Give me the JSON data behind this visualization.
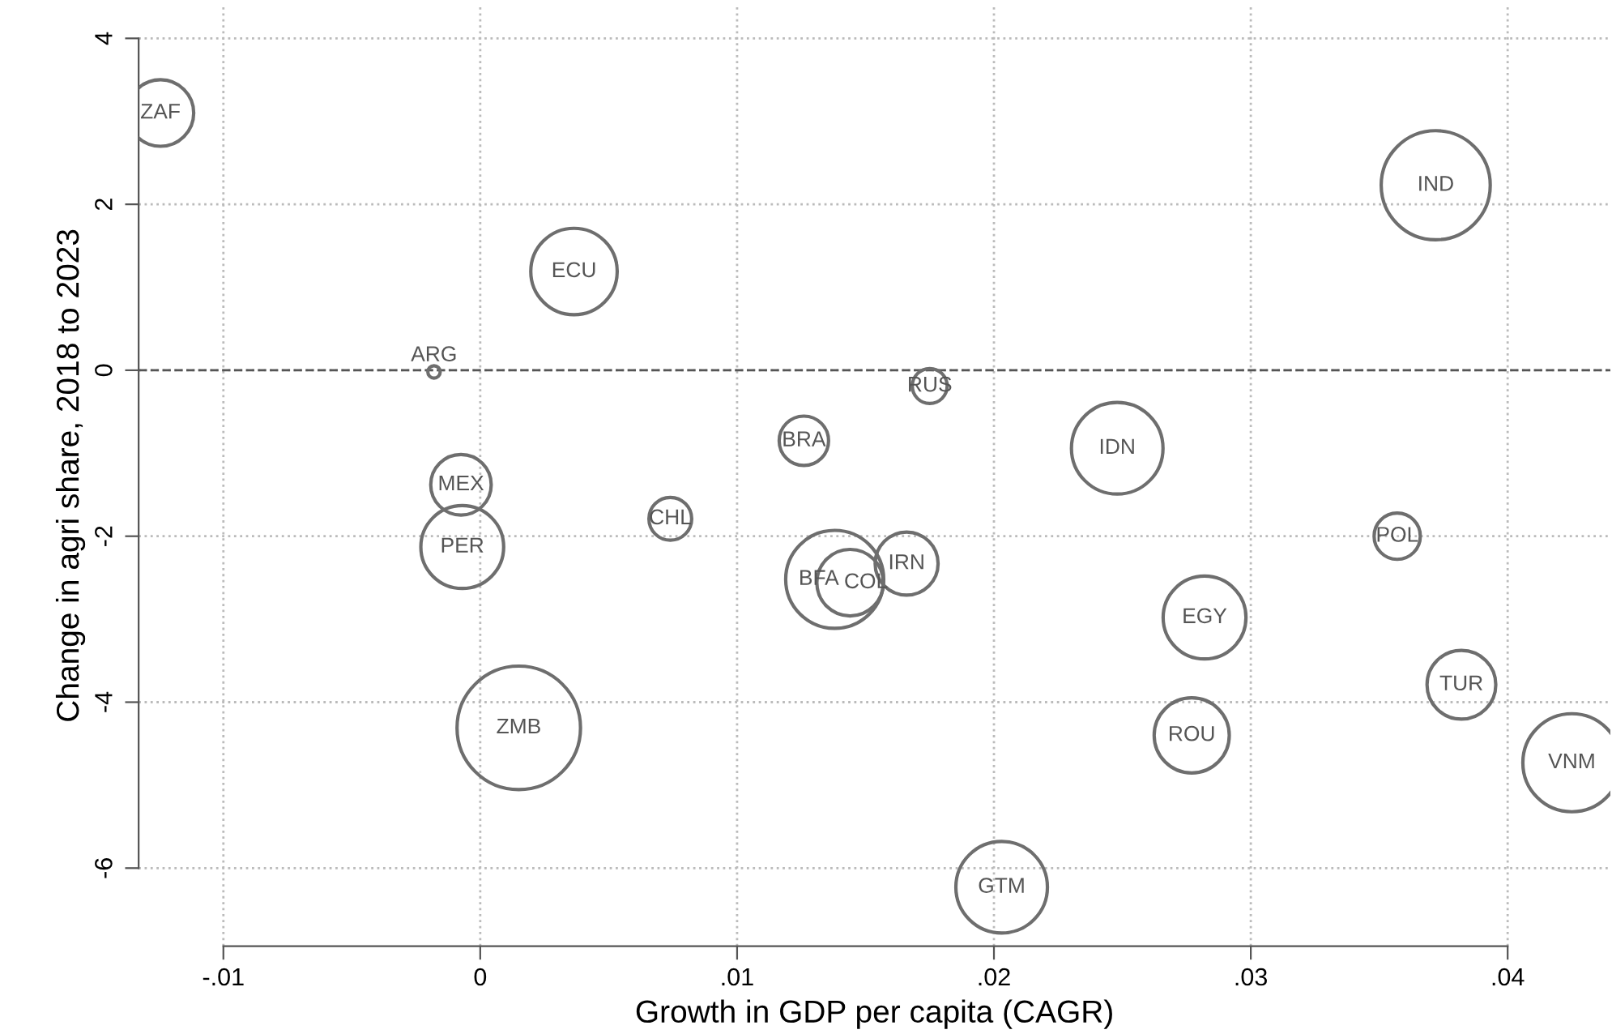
{
  "chart_data": {
    "type": "bubble",
    "xlabel": "Growth in GDP per capita (CAGR)",
    "ylabel": "Change in agri share, 2018 to 2023",
    "series": [
      {
        "color": "#6e6e6e",
        "x": [
          -0.01245,
          0.00365,
          -0.0018,
          0.0372,
          0.0175,
          0.0126,
          0.0248,
          -0.00075,
          0.0074,
          -0.0007,
          0.0138,
          0.0144,
          0.0166,
          0.0357,
          0.0282,
          0.0382,
          0.0277,
          0.0015,
          0.0425,
          0.0203
        ],
        "values": [
          3.1,
          1.19,
          -0.02,
          2.23,
          -0.19,
          -0.85,
          -0.94,
          -1.38,
          -1.79,
          -2.13,
          -2.52,
          -2.56,
          -2.33,
          -2.0,
          -2.98,
          -3.79,
          -4.4,
          -4.31,
          -4.73,
          -6.23
        ],
        "sizes": [
          0.29,
          0.49,
          0.01,
          0.78,
          0.08,
          0.16,
          0.55,
          0.24,
          0.12,
          0.45,
          0.63,
          0.29,
          0.26,
          0.14,
          0.45,
          0.31,
          0.37,
          1,
          0.63,
          0.55
        ]
      }
    ],
    "annotations": [
      {
        "text": "ZAF",
        "x": -0.01245,
        "y": 3.1
      },
      {
        "text": "ECU",
        "x": 0.00365,
        "y": 1.19
      },
      {
        "text": "ARG",
        "x": -0.0018,
        "y": -0.02
      },
      {
        "text": "IND",
        "x": 0.0372,
        "y": 2.23
      },
      {
        "text": "RUS",
        "x": 0.0175,
        "y": -0.19
      },
      {
        "text": "BRA",
        "x": 0.0126,
        "y": -0.85
      },
      {
        "text": "IDN",
        "x": 0.0248,
        "y": -0.94
      },
      {
        "text": "MEX",
        "x": -0.00075,
        "y": -1.38
      },
      {
        "text": "CHL",
        "x": 0.0074,
        "y": -1.79
      },
      {
        "text": "PER",
        "x": -0.0007,
        "y": -2.13
      },
      {
        "text": "BFA",
        "x": 0.0138,
        "y": -2.52
      },
      {
        "text": "COL",
        "x": 0.0144,
        "y": -2.56
      },
      {
        "text": "IRN",
        "x": 0.0166,
        "y": -2.33
      },
      {
        "text": "POL",
        "x": 0.0357,
        "y": -2.0
      },
      {
        "text": "EGY",
        "x": 0.0282,
        "y": -2.98
      },
      {
        "text": "TUR",
        "x": 0.0382,
        "y": -3.79
      },
      {
        "text": "ROU",
        "x": 0.0277,
        "y": -4.4
      },
      {
        "text": "ZMB",
        "x": 0.0015,
        "y": -4.31
      },
      {
        "text": "VNM",
        "x": 0.0425,
        "y": -4.73
      },
      {
        "text": "GTM",
        "x": 0.0203,
        "y": -6.23
      }
    ],
    "xlim": [
      -0.0133,
      0.044
    ],
    "ylim": [
      -6.94,
      4.4
    ],
    "xticks": [
      {
        "value": -0.01,
        "label": "-.01"
      },
      0,
      {
        "value": 0.01,
        "label": ".01"
      },
      {
        "value": 0.02,
        "label": ".02"
      },
      {
        "value": 0.03,
        "label": ".03"
      },
      {
        "value": 0.04,
        "label": ".04"
      }
    ],
    "yticks": [
      -6,
      -4,
      -2,
      0,
      2,
      4
    ],
    "ref_lines": [
      {
        "axis": "y",
        "value": 0,
        "line_style": "dashed",
        "color": "#555555"
      }
    ],
    "grid": true
  }
}
